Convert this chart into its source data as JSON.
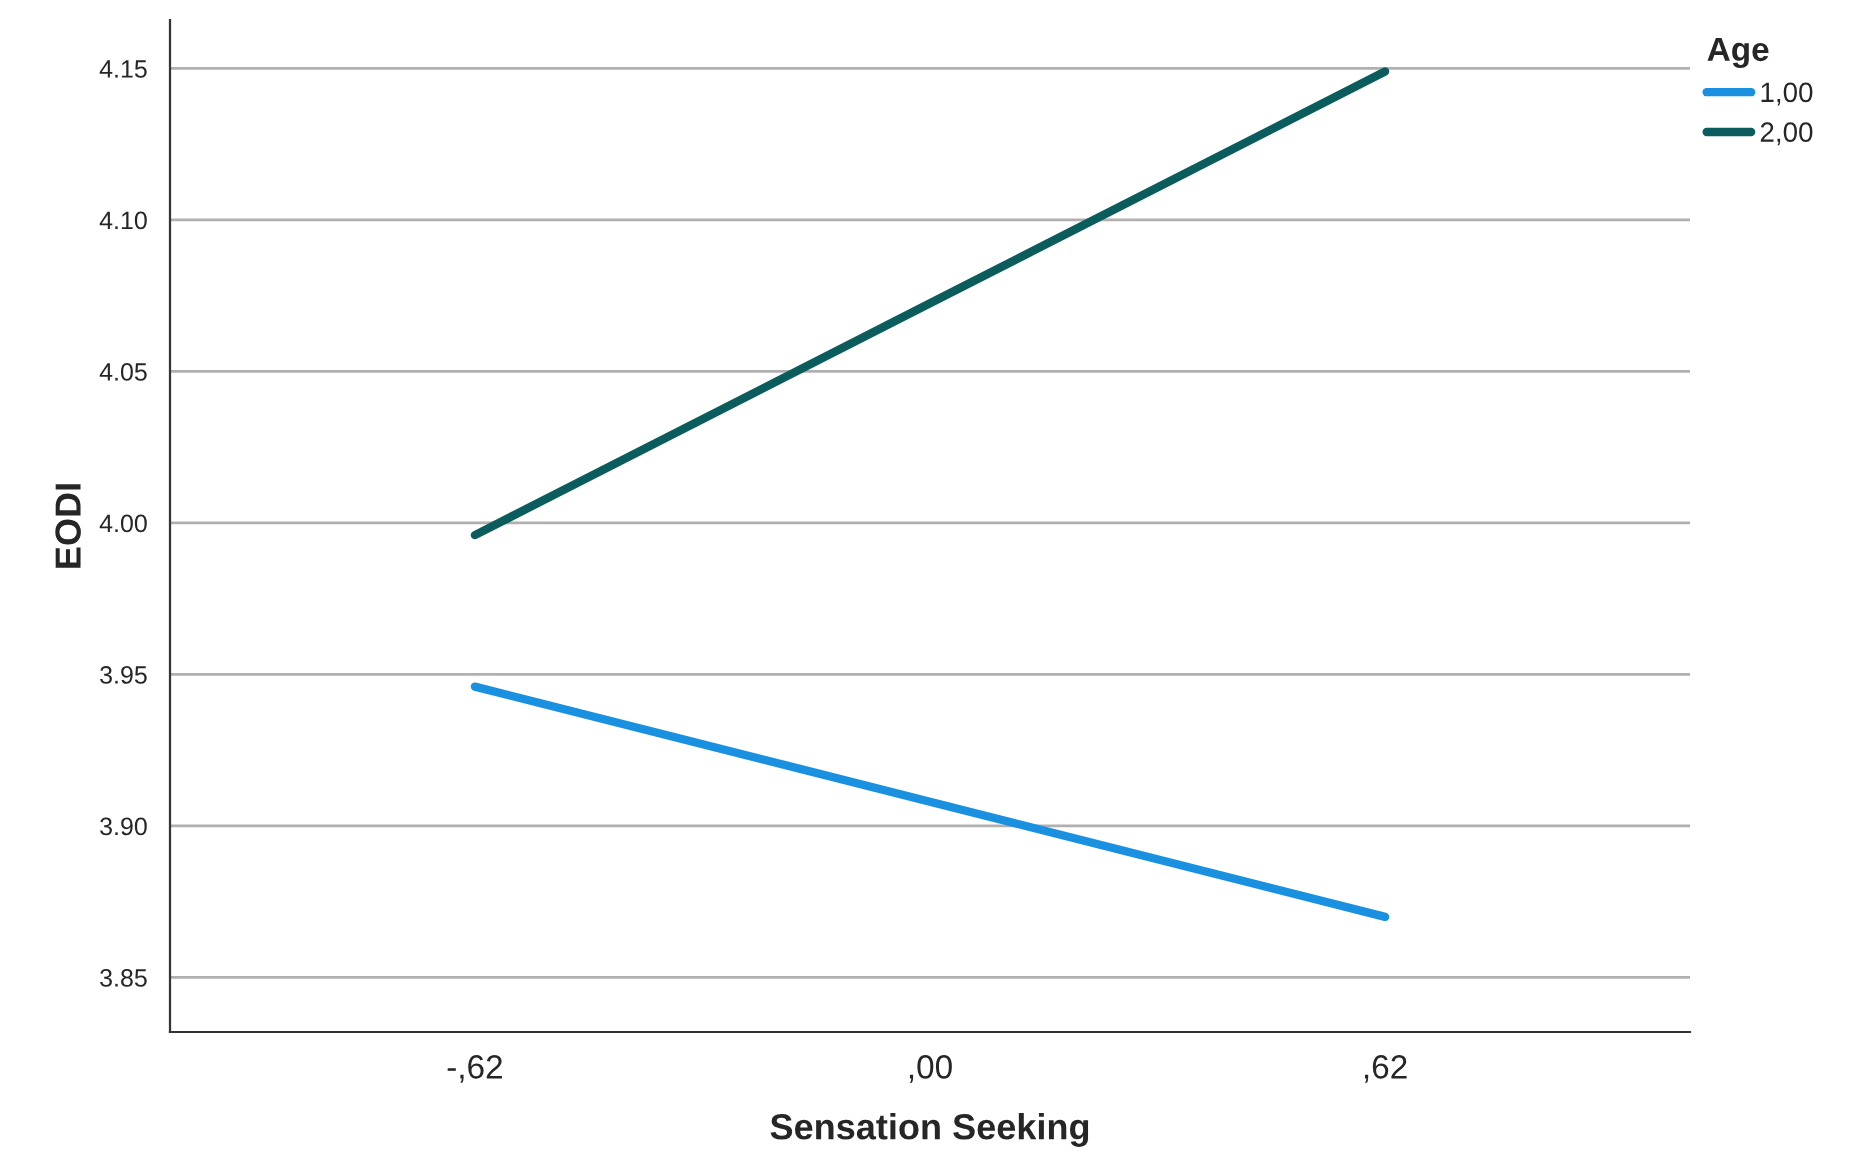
{
  "chart_data": {
    "type": "line",
    "xlabel": "Sensation Seeking",
    "ylabel": "EODI",
    "legend_title": "Age",
    "categories": [
      "-,62",
      ",00",
      ",62"
    ],
    "series": [
      {
        "name": "1,00",
        "color": "#1a90e0",
        "values": [
          3.946,
          3.908,
          3.87
        ]
      },
      {
        "name": "2,00",
        "color": "#0b5c5c",
        "values": [
          3.996,
          4.0725,
          4.149
        ]
      }
    ],
    "ylim": [
      3.832,
      4.166
    ],
    "yticks": [
      {
        "value": 3.85,
        "label": "3.85"
      },
      {
        "value": 3.9,
        "label": "3.90"
      },
      {
        "value": 3.95,
        "label": "3.95"
      },
      {
        "value": 4.0,
        "label": "4.00"
      },
      {
        "value": 4.05,
        "label": "4.05"
      },
      {
        "value": 4.1,
        "label": "4.10"
      },
      {
        "value": 4.15,
        "label": "4.15"
      }
    ],
    "grid": "y",
    "legend": "top right",
    "line_style": "solid"
  }
}
